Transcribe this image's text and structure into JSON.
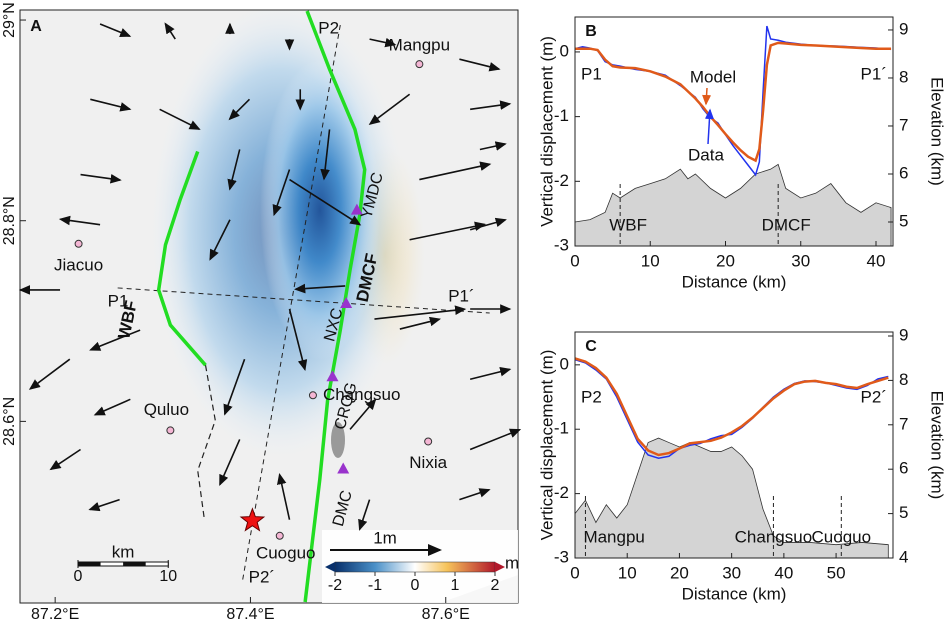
{
  "chart_data": [
    {
      "type": "map",
      "label": "A",
      "xlim": [
        87.164,
        87.674
      ],
      "ylim": [
        28.419,
        29.01
      ],
      "xticks": [
        {
          "value": 87.2,
          "label": "87.2°E"
        },
        {
          "value": 87.4,
          "label": "87.4°E"
        },
        {
          "value": 87.6,
          "label": "87.6°E"
        }
      ],
      "yticks": [
        {
          "value": 28.6,
          "label": "28.6°N"
        },
        {
          "value": 28.8,
          "label": "28.8°N"
        },
        {
          "value": 29,
          "label": "29°N"
        }
      ],
      "places": [
        {
          "name": "Mangpu",
          "lon": 87.573,
          "lat": 28.956
        },
        {
          "name": "Jiacuo",
          "lon": 87.224,
          "lat": 28.777
        },
        {
          "name": "Quluo",
          "lon": 87.318,
          "lat": 28.591
        },
        {
          "name": "Changsuo",
          "lon": 87.464,
          "lat": 28.626
        },
        {
          "name": "Nixia",
          "lon": 87.582,
          "lat": 28.58
        },
        {
          "name": "Cuoguo",
          "lon": 87.43,
          "lat": 28.486
        }
      ],
      "epicenter": {
        "lon": 87.402,
        "lat": 28.501,
        "color": "#ee1111"
      },
      "faults": [
        {
          "name": "WBF",
          "color": "#22dd22",
          "lon": [
            87.346,
            87.328,
            87.313,
            87.306,
            87.318,
            87.354
          ],
          "lat": [
            28.869,
            28.821,
            28.776,
            28.731,
            28.696,
            28.656
          ]
        },
        {
          "name": "DMCF",
          "color": "#22dd22",
          "lon": [
            87.458,
            87.481,
            87.507,
            87.517,
            87.512,
            87.502,
            87.492,
            87.479,
            87.471,
            87.463,
            87.456
          ],
          "lat": [
            29.009,
            28.951,
            28.891,
            28.851,
            28.806,
            28.751,
            28.691,
            28.621,
            28.542,
            28.477,
            28.42
          ]
        }
      ],
      "inferred_fault": {
        "lon": [
          87.354,
          87.364,
          87.346,
          87.353
        ],
        "lat": [
          28.656,
          28.601,
          28.551,
          28.501
        ]
      },
      "profiles": [
        {
          "name": "P1",
          "end_name": "P1´",
          "lon": [
            87.264,
            87.645
          ],
          "lat": [
            28.733,
            28.708
          ]
        },
        {
          "name": "P2",
          "end_name": "P2´",
          "lon": [
            87.492,
            87.392
          ],
          "lat": [
            28.995,
            28.442
          ]
        }
      ],
      "stations": [
        {
          "name": "YMDC",
          "lon": 87.509,
          "lat": 28.811
        },
        {
          "name": "NXC",
          "lon": 87.498,
          "lat": 28.718
        },
        {
          "name": "CRQG",
          "lon": 87.484,
          "lat": 28.645
        },
        {
          "name": "DMC",
          "lon": 87.495,
          "lat": 28.553
        }
      ],
      "station_color": "#9933cc",
      "vectors": {
        "lon": [
          87.246,
          87.323,
          87.379,
          87.44,
          87.522,
          87.614,
          87.236,
          87.307,
          87.399,
          87.451,
          87.563,
          87.625,
          87.226,
          87.389,
          87.44,
          87.481,
          87.573,
          87.635,
          87.246,
          87.379,
          87.44,
          87.563,
          87.625,
          87.205,
          87.287,
          87.497,
          87.527,
          87.625,
          87.215,
          87.394,
          87.44,
          87.553,
          87.625,
          87.226,
          87.277,
          87.389,
          87.502,
          87.625,
          87.266,
          87.44,
          87.522,
          87.614
        ],
        "lat": [
          28.996,
          28.981,
          28.986,
          28.981,
          28.981,
          28.961,
          28.921,
          28.911,
          28.921,
          28.931,
          28.926,
          28.911,
          28.846,
          28.871,
          28.851,
          28.891,
          28.841,
          28.871,
          28.796,
          28.801,
          28.841,
          28.781,
          28.791,
          28.731,
          28.691,
          28.735,
          28.702,
          28.712,
          28.662,
          28.662,
          28.712,
          28.692,
          28.642,
          28.572,
          28.622,
          28.582,
          28.592,
          28.572,
          28.522,
          28.502,
          28.522,
          28.522
        ],
        "east": [
          0.27,
          -0.09,
          0,
          0,
          0.23,
          0.36,
          0.36,
          0.36,
          -0.18,
          0,
          -0.36,
          0.36,
          0.36,
          -0.09,
          -0.14,
          -0.05,
          0.64,
          0.23,
          -0.36,
          -0.18,
          0.64,
          0.68,
          0.32,
          -0.36,
          -0.45,
          -0.45,
          0.82,
          0.36,
          -0.36,
          -0.18,
          0.14,
          0.36,
          0.36,
          -0.27,
          -0.32,
          -0.18,
          0.23,
          0.45,
          -0.27,
          -0.09,
          -0.09,
          0.27
        ],
        "north": [
          -0.11,
          0.14,
          0.09,
          -0.09,
          -0.05,
          -0.09,
          -0.09,
          -0.18,
          -0.18,
          -0.18,
          -0.27,
          0.05,
          -0.05,
          -0.36,
          -0.41,
          -0.45,
          0.14,
          0.05,
          0.05,
          -0.36,
          -0.41,
          0.14,
          0.09,
          0,
          -0.18,
          -0.03,
          0.09,
          0,
          -0.27,
          -0.5,
          -0.55,
          0.09,
          0.09,
          -0.18,
          -0.14,
          -0.41,
          0.27,
          0.18,
          -0.09,
          0.41,
          -0.27,
          0.09
        ]
      },
      "vector_scale": {
        "label": "1m",
        "value": 1
      },
      "scale_bar": {
        "label": "km",
        "ticks": [
          0,
          10
        ]
      },
      "colorbar": {
        "label": "m",
        "lim": [
          -2,
          2
        ],
        "ticks": [
          -2,
          -1,
          0,
          1,
          2
        ]
      }
    },
    {
      "type": "line",
      "label": "B",
      "xlabel": "Distance (km)",
      "ylabel": "Vertical displacement (m)",
      "y2label": "Elevation (km)",
      "xlim": [
        0,
        42.26
      ],
      "ylim": [
        -3,
        0.54
      ],
      "y2lim": [
        4.5,
        9.27
      ],
      "xticks": [
        0,
        10,
        20,
        30,
        40
      ],
      "yticks": [
        -3,
        -2,
        -1,
        0
      ],
      "y2ticks": [
        5,
        6,
        7,
        8,
        9
      ],
      "start_label": "P1",
      "end_label": "P1´",
      "x": [
        0,
        1,
        2,
        3,
        4,
        5,
        6,
        8,
        10,
        12,
        14,
        16,
        17,
        18,
        19,
        20,
        21,
        22,
        23,
        24,
        24.5,
        25,
        25.5,
        26,
        27,
        28,
        30,
        32,
        35,
        38,
        40,
        42
      ],
      "series": [
        {
          "name": "Data",
          "color": "#2233ee",
          "values": [
            0.05,
            0.08,
            0.06,
            0.02,
            -0.15,
            -0.2,
            -0.22,
            -0.27,
            -0.3,
            -0.36,
            -0.52,
            -0.7,
            -0.88,
            -1.02,
            -1.1,
            -1.28,
            -1.45,
            -1.6,
            -1.75,
            -1.9,
            -1.7,
            -0.6,
            0.4,
            0.2,
            0.18,
            0.15,
            0.12,
            0.1,
            0.09,
            0.07,
            0.06,
            0.04
          ]
        },
        {
          "name": "Model",
          "color": "#e05a1a",
          "values": [
            0.05,
            0.05,
            0.05,
            0.03,
            -0.12,
            -0.22,
            -0.24,
            -0.25,
            -0.3,
            -0.38,
            -0.5,
            -0.72,
            -0.85,
            -1.0,
            -1.13,
            -1.27,
            -1.4,
            -1.52,
            -1.62,
            -1.68,
            -1.5,
            -0.9,
            -0.2,
            0.1,
            0.14,
            0.13,
            0.11,
            0.1,
            0.08,
            0.06,
            0.05,
            0.05
          ]
        }
      ],
      "elevation": {
        "axis": "y2",
        "color": "#d4d4d4",
        "x": [
          0,
          2,
          4,
          5,
          6,
          8,
          10,
          12,
          14,
          15,
          16,
          18,
          20,
          22,
          24,
          26,
          27,
          28,
          30,
          32,
          34,
          36,
          38,
          40,
          42
        ],
        "values": [
          5.0,
          5.05,
          5.2,
          5.6,
          5.5,
          5.7,
          5.8,
          5.9,
          6.1,
          5.9,
          6.0,
          5.7,
          5.5,
          5.7,
          6.0,
          6.1,
          6.2,
          5.7,
          5.5,
          5.6,
          5.8,
          5.4,
          5.2,
          5.4,
          5.3
        ]
      },
      "markers": [
        {
          "label": "WBF",
          "x": 6
        },
        {
          "label": "DMCF",
          "x": 27
        }
      ]
    },
    {
      "type": "line",
      "label": "C",
      "xlabel": "Distance (km)",
      "ylabel": "Vertical displacement (m)",
      "y2label": "Elevation (km)",
      "xlim": [
        0,
        60.9
      ],
      "ylim": [
        -3,
        0.51
      ],
      "y2lim": [
        4,
        9.09
      ],
      "xticks": [
        0,
        10,
        20,
        30,
        40,
        50
      ],
      "yticks": [
        -3,
        -2,
        -1,
        0
      ],
      "y2ticks": [
        4,
        5,
        6,
        7,
        8,
        9
      ],
      "start_label": "P2",
      "end_label": "P2´",
      "x": [
        0,
        2,
        4,
        6,
        8,
        10,
        12,
        14,
        16,
        18,
        20,
        22,
        24,
        26,
        28,
        30,
        32,
        34,
        36,
        38,
        40,
        42,
        44,
        46,
        48,
        50,
        52,
        54,
        56,
        58,
        60
      ],
      "series": [
        {
          "name": "Data",
          "color": "#2233ee",
          "values": [
            0.08,
            0.03,
            -0.08,
            -0.22,
            -0.5,
            -0.85,
            -1.2,
            -1.4,
            -1.45,
            -1.42,
            -1.3,
            -1.25,
            -1.22,
            -1.15,
            -1.1,
            -1.08,
            -0.97,
            -0.83,
            -0.66,
            -0.5,
            -0.38,
            -0.29,
            -0.25,
            -0.26,
            -0.28,
            -0.32,
            -0.36,
            -0.38,
            -0.32,
            -0.22,
            -0.18
          ]
        },
        {
          "name": "Model",
          "color": "#e05a1a",
          "values": [
            0.1,
            0.05,
            -0.05,
            -0.2,
            -0.45,
            -0.8,
            -1.15,
            -1.33,
            -1.4,
            -1.37,
            -1.3,
            -1.22,
            -1.2,
            -1.18,
            -1.13,
            -1.05,
            -0.95,
            -0.82,
            -0.67,
            -0.52,
            -0.4,
            -0.3,
            -0.26,
            -0.25,
            -0.28,
            -0.3,
            -0.34,
            -0.36,
            -0.3,
            -0.25,
            -0.2
          ]
        }
      ],
      "elevation": {
        "axis": "y2",
        "color": "#d4d4d4",
        "x": [
          0,
          2,
          4,
          6,
          8,
          10,
          12,
          14,
          16,
          18,
          20,
          22,
          24,
          26,
          28,
          30,
          32,
          34,
          36,
          38,
          40,
          45,
          50,
          55,
          60
        ],
        "values": [
          5.0,
          5.3,
          4.8,
          5.2,
          4.9,
          5.2,
          5.9,
          6.6,
          6.7,
          6.6,
          6.5,
          6.6,
          6.5,
          6.4,
          6.4,
          6.5,
          6.3,
          6.0,
          5.1,
          4.5,
          4.35,
          4.35,
          4.3,
          4.35,
          4.3
        ]
      },
      "markers": [
        {
          "label": "Mangpu",
          "x": 2
        },
        {
          "label": "Changsuo",
          "x": 38
        },
        {
          "label": "Cuoguo",
          "x": 51
        }
      ]
    }
  ]
}
